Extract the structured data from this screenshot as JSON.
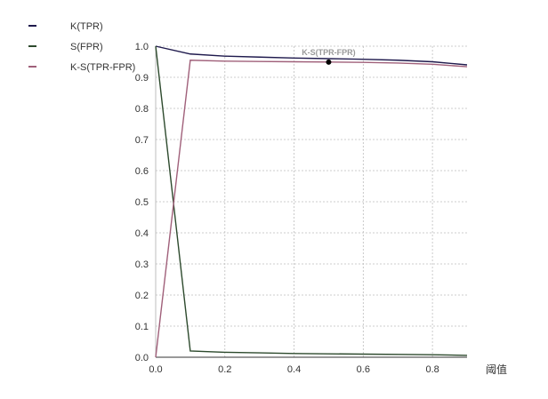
{
  "chart_data": {
    "type": "line",
    "x": [
      0,
      0.1,
      0.2,
      0.3,
      0.4,
      0.5,
      0.6,
      0.7,
      0.8,
      0.9
    ],
    "series": [
      {
        "name": "K(TPR)",
        "color": "#1f1a4d",
        "values": [
          1.0,
          0.975,
          0.968,
          0.965,
          0.962,
          0.96,
          0.958,
          0.955,
          0.95,
          0.94
        ]
      },
      {
        "name": "S(FPR)",
        "color": "#2d4a2d",
        "values": [
          1.0,
          0.02,
          0.016,
          0.014,
          0.012,
          0.011,
          0.01,
          0.009,
          0.008,
          0.006
        ]
      },
      {
        "name": "K-S(TPR-FPR)",
        "color": "#a0607a",
        "values": [
          0.0,
          0.955,
          0.952,
          0.951,
          0.95,
          0.949,
          0.948,
          0.946,
          0.942,
          0.934
        ]
      }
    ],
    "xlabel": "阈值",
    "ylabel": "",
    "xlim": [
      0,
      0.9
    ],
    "ylim": [
      0,
      1.0
    ],
    "x_ticks": [
      "0.0",
      "0.2",
      "0.4",
      "0.6",
      "0.8"
    ],
    "y_ticks": [
      "0.0",
      "0.1",
      "0.2",
      "0.3",
      "0.4",
      "0.5",
      "0.6",
      "0.7",
      "0.8",
      "0.9",
      "1.0"
    ],
    "grid": true,
    "legend_position": "top-left",
    "annotation": {
      "text": "K-S(TPR-FPR)",
      "x": 0.5,
      "y": 0.949
    }
  }
}
